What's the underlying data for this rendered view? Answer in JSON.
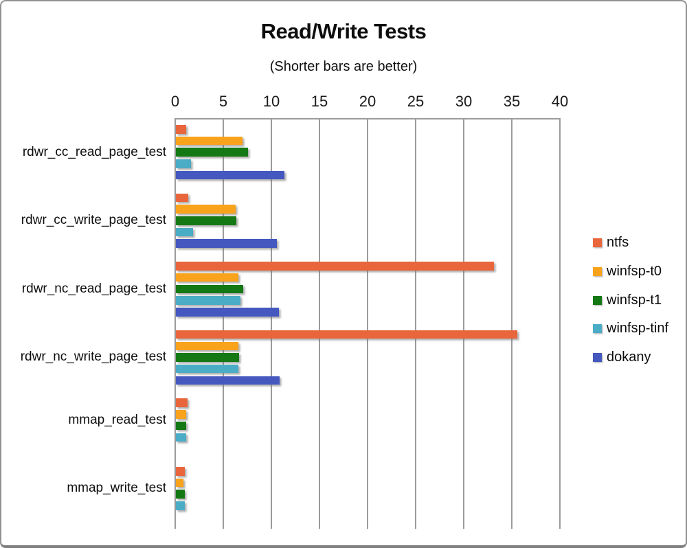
{
  "title": "Read/Write Tests",
  "subtitle": "(Shorter bars are better)",
  "chart_data": {
    "type": "bar",
    "orientation": "horizontal",
    "title": "Read/Write Tests",
    "subtitle": "(Shorter bars are better)",
    "xlabel": "",
    "ylabel": "",
    "xlim": [
      0,
      40
    ],
    "x_ticks": [
      0,
      5,
      10,
      15,
      20,
      25,
      30,
      35,
      40
    ],
    "grid": "vertical",
    "axis_position": "top",
    "legend_position": "right",
    "categories": [
      "rdwr_cc_read_page_test",
      "rdwr_cc_write_page_test",
      "rdwr_nc_read_page_test",
      "rdwr_nc_write_page_test",
      "mmap_read_test",
      "mmap_write_test"
    ],
    "series": [
      {
        "name": "ntfs",
        "color": "#E9663C",
        "values": [
          1.1,
          1.3,
          33.1,
          35.5,
          1.2,
          0.9
        ]
      },
      {
        "name": "winfsp-t0",
        "color": "#F9A21C",
        "values": [
          6.9,
          6.2,
          6.5,
          6.5,
          1.1,
          0.8
        ]
      },
      {
        "name": "winfsp-t1",
        "color": "#147914",
        "values": [
          7.5,
          6.3,
          7.0,
          6.6,
          1.1,
          0.9
        ]
      },
      {
        "name": "winfsp-tinf",
        "color": "#4BACC6",
        "values": [
          1.6,
          1.8,
          6.7,
          6.5,
          1.1,
          0.9
        ]
      },
      {
        "name": "dokany",
        "color": "#4458C0",
        "values": [
          11.3,
          10.5,
          10.7,
          10.8,
          null,
          null
        ]
      }
    ],
    "colors": {
      "gridline": "#9b9b9b",
      "text": "#0d0d0d",
      "background": "#ffffff"
    }
  }
}
